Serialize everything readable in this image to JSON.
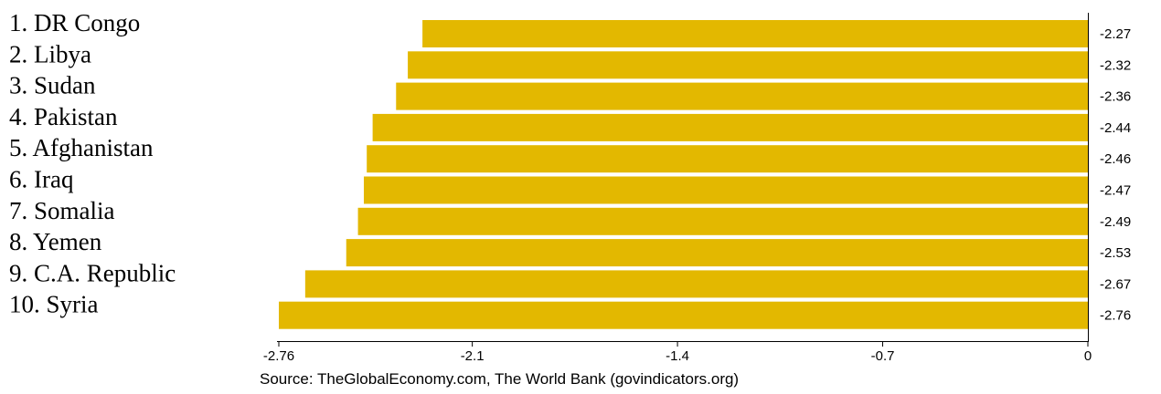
{
  "chart_data": {
    "type": "bar",
    "orientation": "horizontal",
    "categories": [
      "1. DR Congo",
      "2. Libya",
      "3. Sudan",
      "4. Pakistan",
      "5. Afghanistan",
      "6. Iraq",
      "7. Somalia",
      "8. Yemen",
      "9. C.A. Republic",
      "10. Syria"
    ],
    "values": [
      -2.27,
      -2.32,
      -2.36,
      -2.44,
      -2.46,
      -2.47,
      -2.49,
      -2.53,
      -2.67,
      -2.76
    ],
    "value_labels": [
      "-2.27",
      "-2.32",
      "-2.36",
      "-2.44",
      "-2.46",
      "-2.47",
      "-2.49",
      "-2.53",
      "-2.67",
      "-2.76"
    ],
    "xlim": [
      -2.76,
      0
    ],
    "x_ticks": [
      -2.76,
      -2.1,
      -1.4,
      -0.7,
      0
    ],
    "x_tick_labels": [
      "-2.76",
      "-2.1",
      "-1.4",
      "-0.7",
      "0"
    ],
    "source": "Source: TheGlobalEconomy.com, The World Bank (govindicators.org)",
    "bar_color": "#E3B800",
    "grid": false
  }
}
